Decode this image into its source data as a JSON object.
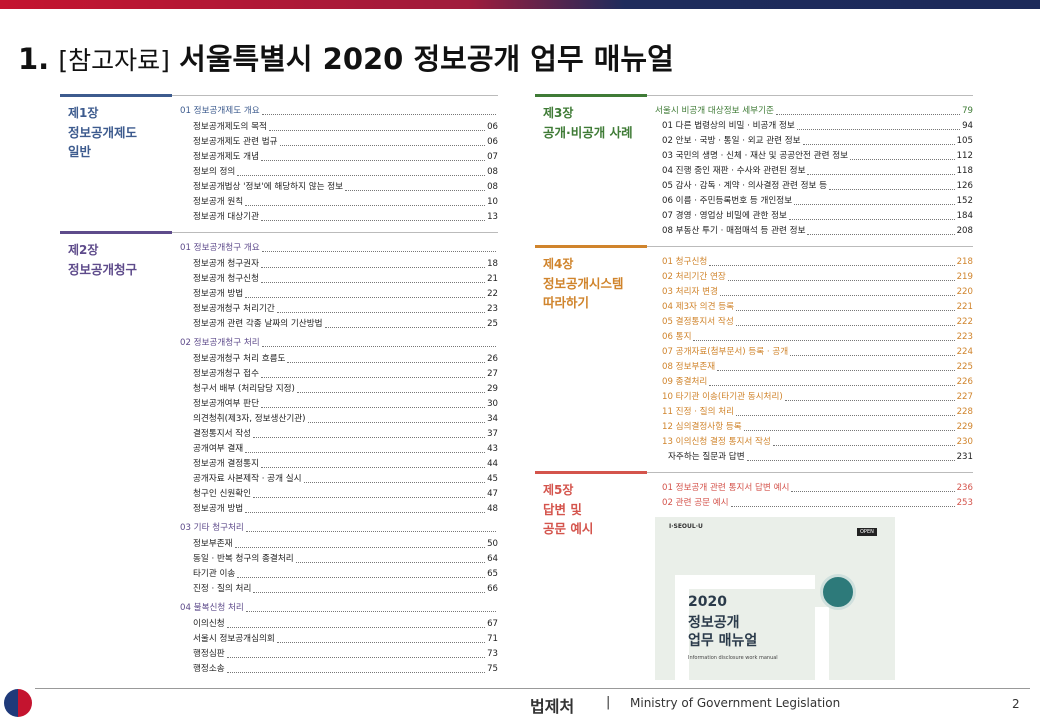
{
  "header": {
    "number": "1.",
    "tag": "[참고자료]",
    "title": "서울특별시 2020 정보공개 업무 매뉴얼"
  },
  "left": [
    {
      "label": "제1장",
      "title": [
        "정보공개제도",
        "일반"
      ],
      "color": "#3d5b8e",
      "groups": [
        {
          "heading": "01 정보공개제도 개요",
          "items": [
            [
              "정보공개제도의 목적",
              "06"
            ],
            [
              "정보공개제도 관련 법규",
              "06"
            ],
            [
              "정보공개제도 개념",
              "07"
            ],
            [
              "정보의 정의",
              "08"
            ],
            [
              "정보공개법상 '정보'에 해당하지 않는 정보",
              "08"
            ],
            [
              "정보공개 원칙",
              "10"
            ],
            [
              "정보공개 대상기관",
              "13"
            ]
          ]
        }
      ]
    },
    {
      "label": "제2장",
      "title": [
        "정보공개청구"
      ],
      "color": "#5e4b8b",
      "groups": [
        {
          "heading": "01 정보공개청구 개요",
          "items": [
            [
              "정보공개 청구권자",
              "18"
            ],
            [
              "정보공개 청구신청",
              "21"
            ],
            [
              "정보공개 방법",
              "22"
            ],
            [
              "정보공개청구 처리기간",
              "23"
            ],
            [
              "정보공개 관련 각종 날짜의 기산방법",
              "25"
            ]
          ]
        },
        {
          "heading": "02 정보공개청구 처리",
          "items": [
            [
              "정보공개청구 처리 흐름도",
              "26"
            ],
            [
              "정보공개청구 접수",
              "27"
            ],
            [
              "청구서 배부 (처리담당 지정)",
              "29"
            ],
            [
              "정보공개여부 판단",
              "30"
            ],
            [
              "의견청취(제3자, 정보생산기관)",
              "34"
            ],
            [
              "결정통지서 작성",
              "37"
            ],
            [
              "공개여부 결재",
              "43"
            ],
            [
              "정보공개 결정통지",
              "44"
            ],
            [
              "공개자료 사본제작 · 공개 실시",
              "45"
            ],
            [
              "청구인 신원확인",
              "47"
            ],
            [
              "정보공개 방법",
              "48"
            ]
          ]
        },
        {
          "heading": "03 기타 청구처리",
          "items": [
            [
              "정보부존재",
              "50"
            ],
            [
              "동일 · 반복 청구의 종결처리",
              "64"
            ],
            [
              "타기관 이송",
              "65"
            ],
            [
              "진정 · 질의 처리",
              "66"
            ]
          ]
        },
        {
          "heading": "04 불복신청 처리",
          "items": [
            [
              "이의신청",
              "67"
            ],
            [
              "서울시 정보공개심의회",
              "71"
            ],
            [
              "행정심판",
              "73"
            ],
            [
              "행정소송",
              "75"
            ]
          ]
        }
      ]
    }
  ],
  "right": [
    {
      "label": "제3장",
      "title": [
        "공개·비공개 사례"
      ],
      "color": "#3f7b36",
      "groups": [
        {
          "heading": "서울시 비공개 대상정보 세부기준",
          "heading_page": "79",
          "items": [
            [
              "01 다른 법령상의 비밀 · 비공개 정보",
              "94"
            ],
            [
              "02 안보 · 국방 · 통일 · 외교 관련 정보",
              "105"
            ],
            [
              "03 국민의 생명 · 신체 · 재산 및 공공안전 관련 정보",
              "112"
            ],
            [
              "04 진행 중인 재판 · 수사와 관련된 정보",
              "118"
            ],
            [
              "05 감사 · 감독 · 계약 · 의사결정 관련 정보 등",
              "126"
            ],
            [
              "06 이름 · 주민등록번호 등 개인정보",
              "152"
            ],
            [
              "07 경영 · 영업상 비밀에 관한 정보",
              "184"
            ],
            [
              "08 부동산 투기 · 매점매석 등 관련 정보",
              "208"
            ]
          ]
        }
      ]
    },
    {
      "label": "제4장",
      "title": [
        "정보공개시스템",
        "따라하기"
      ],
      "color": "#d0842c",
      "groups": [
        {
          "color": "#d0842c",
          "items": [
            [
              "01 청구신청",
              "218"
            ],
            [
              "02 처리기간 연장",
              "219"
            ],
            [
              "03 처리자 변경",
              "220"
            ],
            [
              "04 제3자 의견 등록",
              "221"
            ],
            [
              "05 결정통지서 작성",
              "222"
            ],
            [
              "06 통지",
              "223"
            ],
            [
              "07 공개자료(첨부문서) 등록 · 공개",
              "224"
            ],
            [
              "08 정보부존재",
              "225"
            ],
            [
              "09 종결처리",
              "226"
            ],
            [
              "10 타기관 이송(타기관 동시처리)",
              "227"
            ],
            [
              "11 진정 · 질의 처리",
              "228"
            ],
            [
              "12 심의결정사항 등록",
              "229"
            ],
            [
              "13 이의신청 결정 통지서 작성",
              "230"
            ]
          ]
        },
        {
          "items": [
            [
              "자주하는 질문과 답변",
              "231"
            ]
          ]
        }
      ]
    },
    {
      "label": "제5장",
      "title": [
        "답변 및",
        "공문 예시"
      ],
      "color": "#d4544c",
      "groups": [
        {
          "color": "#d4544c",
          "items": [
            [
              "01 정보공개 관련 통지서 답변 예시",
              "236"
            ],
            [
              "02 관련 공문 예시",
              "253"
            ]
          ]
        }
      ]
    }
  ],
  "cover": {
    "brand": "I·SEOUL·U",
    "badge": "OPEN",
    "title": [
      "2020",
      "정보공개",
      "업무 매뉴얼"
    ],
    "subtitle": "Information disclosure work manual"
  },
  "footer": {
    "org": "법제처",
    "separator": "|",
    "ministry": "Ministry of Government Legislation",
    "page": "2"
  }
}
